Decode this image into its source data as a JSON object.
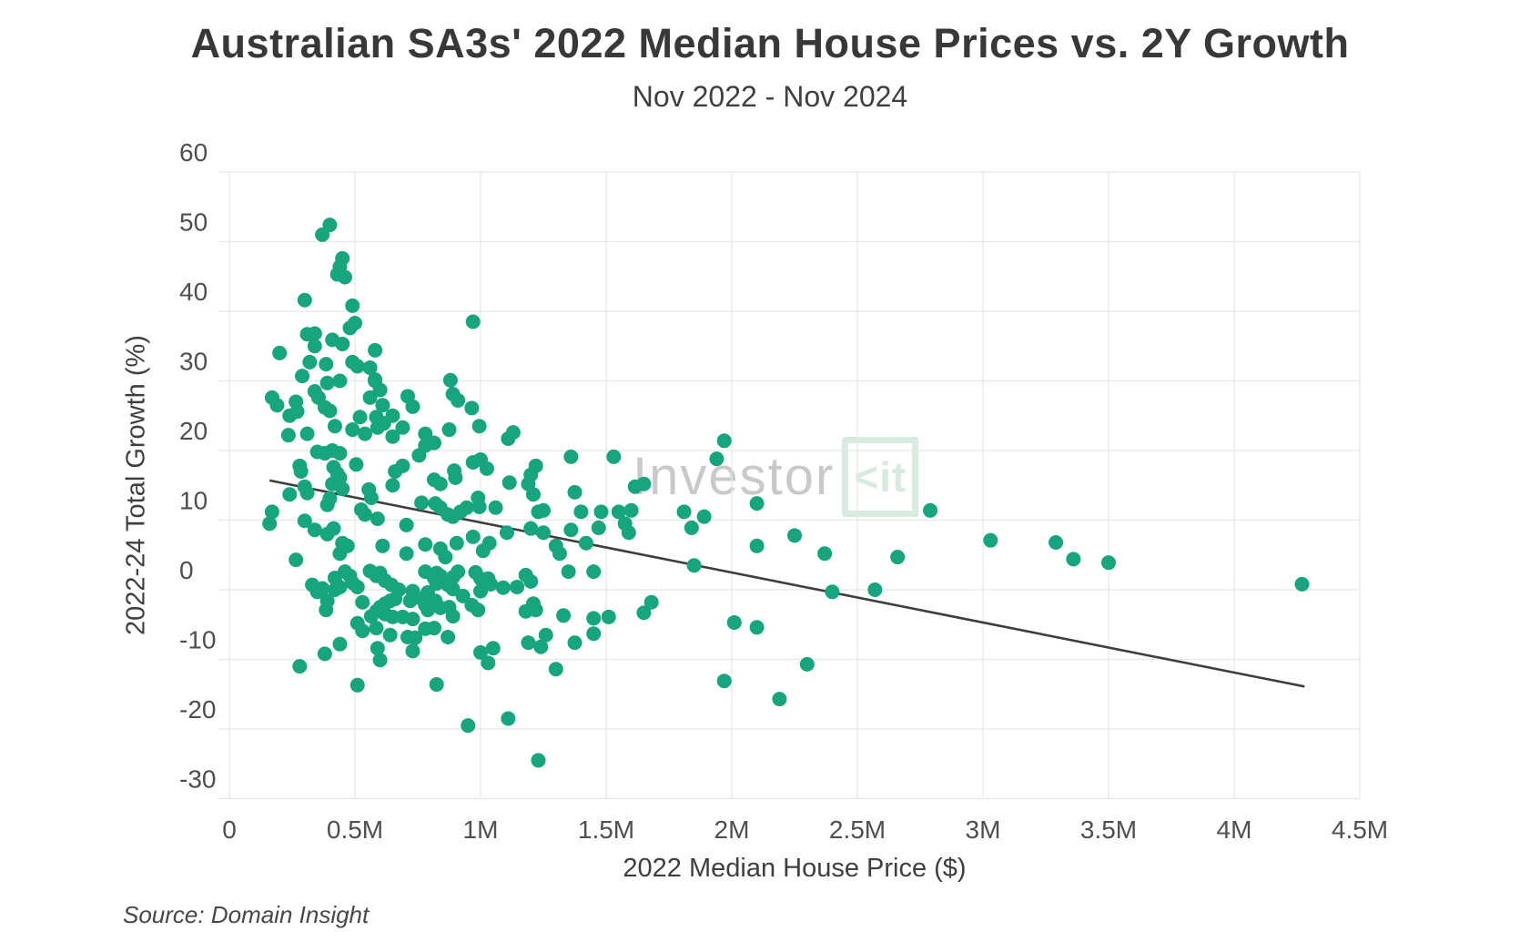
{
  "header": {
    "title": "Australian SA3s' 2022 Median House Prices vs. 2Y Growth",
    "subtitle": "Nov 2022 - Nov 2024"
  },
  "source_note": "Source: Domain Insight",
  "watermark": {
    "brand_gray": "Investor",
    "brand_k": "<",
    "brand_it": "it"
  },
  "chart_data": {
    "type": "scatter",
    "title": "Australian SA3s' 2022 Median House Prices vs. 2Y Growth",
    "subtitle": "Nov 2022 - Nov 2024",
    "xlabel": "2022 Median House Price ($)",
    "ylabel": "2022-24 Total Growth (%)",
    "xlim": [
      0,
      4.5
    ],
    "ylim": [
      -30,
      60
    ],
    "grid": true,
    "legend": "none",
    "x_unit": "millions of dollars",
    "y_unit": "percent",
    "colors": {
      "point": "#16a57d",
      "trendline": "#3e3e3e",
      "gridline": "#e7e7e7",
      "tick_text": "#4f4f4f"
    },
    "x_ticks": [
      {
        "value": 0.0,
        "label": "0"
      },
      {
        "value": 0.5,
        "label": "0.5M"
      },
      {
        "value": 1.0,
        "label": "1M"
      },
      {
        "value": 1.5,
        "label": "1.5M"
      },
      {
        "value": 2.0,
        "label": "2M"
      },
      {
        "value": 2.5,
        "label": "2.5M"
      },
      {
        "value": 3.0,
        "label": "3M"
      },
      {
        "value": 3.5,
        "label": "3.5M"
      },
      {
        "value": 4.0,
        "label": "4M"
      },
      {
        "value": 4.5,
        "label": "4.5M"
      }
    ],
    "y_ticks": [
      {
        "value": 60,
        "label": "60"
      },
      {
        "value": 50,
        "label": "50"
      },
      {
        "value": 40,
        "label": "40"
      },
      {
        "value": 30,
        "label": "30"
      },
      {
        "value": 20,
        "label": "20"
      },
      {
        "value": 10,
        "label": "10"
      },
      {
        "value": 0,
        "label": "0"
      },
      {
        "value": -10,
        "label": "-10"
      },
      {
        "value": -20,
        "label": "-20"
      },
      {
        "value": -30,
        "label": "-30"
      }
    ],
    "trendline": {
      "x1": 0.16,
      "y1": 15.7,
      "x2": 4.28,
      "y2": -13.9
    },
    "points": [
      [
        0.4,
        52.4
      ],
      [
        0.37,
        51.0
      ],
      [
        0.45,
        47.6
      ],
      [
        0.44,
        46.4
      ],
      [
        0.43,
        45.3
      ],
      [
        0.46,
        44.9
      ],
      [
        0.3,
        41.6
      ],
      [
        0.49,
        40.8
      ],
      [
        0.5,
        38.3
      ],
      [
        0.48,
        37.6
      ],
      [
        0.97,
        38.5
      ],
      [
        0.31,
        36.7
      ],
      [
        0.34,
        36.8
      ],
      [
        0.34,
        35.0
      ],
      [
        0.41,
        35.9
      ],
      [
        0.45,
        35.3
      ],
      [
        0.2,
        34.0
      ],
      [
        0.58,
        34.4
      ],
      [
        0.32,
        32.7
      ],
      [
        0.385,
        32.4
      ],
      [
        0.29,
        30.7
      ],
      [
        0.49,
        32.7
      ],
      [
        0.51,
        32.1
      ],
      [
        0.56,
        31.9
      ],
      [
        0.58,
        30.2
      ],
      [
        0.39,
        29.7
      ],
      [
        0.44,
        30.0
      ],
      [
        0.58,
        30.0
      ],
      [
        0.6,
        28.7
      ],
      [
        0.88,
        30.1
      ],
      [
        0.17,
        27.6
      ],
      [
        0.19,
        26.5
      ],
      [
        0.34,
        28.5
      ],
      [
        0.355,
        27.6
      ],
      [
        0.38,
        26.2
      ],
      [
        0.4,
        25.7
      ],
      [
        0.265,
        27.0
      ],
      [
        0.27,
        25.6
      ],
      [
        0.24,
        25.0
      ],
      [
        0.56,
        27.6
      ],
      [
        0.61,
        26.5
      ],
      [
        0.71,
        27.8
      ],
      [
        0.73,
        26.3
      ],
      [
        0.89,
        28.1
      ],
      [
        0.91,
        27.2
      ],
      [
        0.965,
        26.1
      ],
      [
        0.235,
        22.2
      ],
      [
        0.31,
        22.4
      ],
      [
        0.42,
        23.5
      ],
      [
        0.49,
        23.0
      ],
      [
        0.52,
        24.8
      ],
      [
        0.54,
        22.4
      ],
      [
        0.585,
        24.8
      ],
      [
        0.59,
        23.3
      ],
      [
        0.615,
        23.9
      ],
      [
        0.65,
        25.0
      ],
      [
        0.65,
        22.0
      ],
      [
        0.69,
        23.3
      ],
      [
        0.78,
        22.4
      ],
      [
        0.815,
        21.1
      ],
      [
        0.875,
        23.0
      ],
      [
        0.995,
        23.5
      ],
      [
        1.11,
        21.7
      ],
      [
        1.13,
        22.6
      ],
      [
        0.35,
        19.8
      ],
      [
        0.38,
        19.6
      ],
      [
        0.41,
        20.0
      ],
      [
        0.44,
        19.6
      ],
      [
        0.505,
        18.0
      ],
      [
        0.28,
        17.8
      ],
      [
        0.285,
        17.0
      ],
      [
        0.415,
        17.6
      ],
      [
        0.43,
        16.7
      ],
      [
        0.66,
        17.0
      ],
      [
        0.69,
        17.8
      ],
      [
        0.755,
        19.3
      ],
      [
        0.78,
        20.7
      ],
      [
        0.97,
        18.3
      ],
      [
        1.0,
        18.7
      ],
      [
        1.025,
        17.4
      ],
      [
        0.895,
        17.1
      ],
      [
        0.9,
        16.1
      ],
      [
        0.41,
        15.2
      ],
      [
        0.44,
        16.1
      ],
      [
        0.45,
        14.5
      ],
      [
        0.3,
        14.8
      ],
      [
        0.31,
        13.9
      ],
      [
        0.65,
        15.0
      ],
      [
        0.815,
        15.8
      ],
      [
        0.84,
        15.2
      ],
      [
        1.115,
        15.4
      ],
      [
        0.24,
        13.7
      ],
      [
        0.4,
        13.1
      ],
      [
        0.39,
        12.2
      ],
      [
        0.555,
        14.4
      ],
      [
        0.565,
        13.2
      ],
      [
        0.59,
        10.2
      ],
      [
        0.525,
        11.5
      ],
      [
        0.54,
        10.8
      ],
      [
        0.705,
        9.3
      ],
      [
        0.765,
        12.5
      ],
      [
        0.82,
        12.4
      ],
      [
        0.84,
        11.8
      ],
      [
        0.87,
        10.8
      ],
      [
        0.89,
        10.5
      ],
      [
        0.92,
        11.2
      ],
      [
        0.945,
        11.8
      ],
      [
        0.99,
        13.2
      ],
      [
        0.995,
        11.9
      ],
      [
        1.06,
        11.8
      ],
      [
        1.105,
        8.2
      ],
      [
        0.17,
        11.2
      ],
      [
        0.16,
        9.5
      ],
      [
        0.3,
        9.9
      ],
      [
        0.34,
        8.6
      ],
      [
        0.39,
        8.0
      ],
      [
        0.415,
        8.8
      ],
      [
        0.45,
        6.7
      ],
      [
        0.47,
        6.3
      ],
      [
        0.44,
        5.2
      ],
      [
        0.61,
        6.3
      ],
      [
        0.705,
        5.2
      ],
      [
        0.78,
        6.5
      ],
      [
        0.84,
        5.9
      ],
      [
        0.86,
        4.7
      ],
      [
        0.905,
        6.7
      ],
      [
        0.97,
        7.6
      ],
      [
        1.01,
        5.6
      ],
      [
        1.035,
        6.7
      ],
      [
        0.265,
        4.3
      ],
      [
        0.33,
        0.7
      ],
      [
        0.42,
        1.7
      ],
      [
        0.46,
        2.6
      ],
      [
        0.48,
        2.0
      ],
      [
        0.49,
        1.0
      ],
      [
        0.44,
        0.4
      ],
      [
        0.51,
        0.4
      ],
      [
        0.56,
        2.7
      ],
      [
        0.585,
        2.0
      ],
      [
        0.6,
        2.4
      ],
      [
        0.62,
        1.3
      ],
      [
        0.645,
        0.7
      ],
      [
        0.675,
        0.0
      ],
      [
        0.78,
        2.6
      ],
      [
        0.825,
        2.4
      ],
      [
        0.815,
        1.7
      ],
      [
        0.84,
        2.0
      ],
      [
        0.825,
        0.9
      ],
      [
        0.87,
        0.7
      ],
      [
        0.89,
        1.8
      ],
      [
        0.91,
        2.6
      ],
      [
        0.98,
        2.5
      ],
      [
        1.0,
        1.6
      ],
      [
        1.03,
        1.6
      ],
      [
        1.04,
        0.8
      ],
      [
        1.09,
        0.3
      ],
      [
        0.42,
        0.0
      ],
      [
        0.35,
        -0.3
      ],
      [
        0.37,
        0.2
      ],
      [
        0.73,
        -0.2
      ],
      [
        0.79,
        -0.4
      ],
      [
        0.89,
        0.1
      ],
      [
        1.0,
        -0.2
      ],
      [
        1.97,
        21.4
      ],
      [
        1.36,
        19.1
      ],
      [
        1.53,
        19.1
      ],
      [
        1.94,
        18.8
      ],
      [
        1.22,
        17.8
      ],
      [
        1.2,
        16.5
      ],
      [
        1.19,
        15.2
      ],
      [
        1.65,
        15.2
      ],
      [
        1.615,
        14.8
      ],
      [
        1.21,
        13.7
      ],
      [
        1.375,
        14.0
      ],
      [
        2.1,
        12.4
      ],
      [
        1.23,
        11.2
      ],
      [
        1.25,
        11.4
      ],
      [
        1.4,
        11.2
      ],
      [
        1.48,
        11.2
      ],
      [
        1.55,
        11.2
      ],
      [
        1.6,
        11.4
      ],
      [
        1.81,
        11.2
      ],
      [
        1.89,
        10.5
      ],
      [
        1.2,
        8.8
      ],
      [
        1.25,
        8.2
      ],
      [
        1.36,
        8.6
      ],
      [
        1.47,
        8.9
      ],
      [
        1.575,
        9.5
      ],
      [
        1.59,
        8.2
      ],
      [
        1.84,
        8.9
      ],
      [
        2.25,
        7.8
      ],
      [
        1.3,
        6.3
      ],
      [
        1.315,
        5.2
      ],
      [
        1.42,
        6.7
      ],
      [
        2.1,
        6.3
      ],
      [
        1.18,
        2.1
      ],
      [
        1.2,
        1.2
      ],
      [
        1.35,
        2.6
      ],
      [
        1.45,
        2.6
      ],
      [
        1.85,
        3.5
      ],
      [
        1.145,
        0.4
      ],
      [
        2.79,
        11.4
      ],
      [
        2.37,
        5.2
      ],
      [
        2.66,
        4.7
      ],
      [
        3.03,
        7.1
      ],
      [
        3.29,
        6.8
      ],
      [
        3.36,
        4.4
      ],
      [
        2.4,
        -0.3
      ],
      [
        2.57,
        0.0
      ],
      [
        3.5,
        3.9
      ],
      [
        4.27,
        0.8
      ],
      [
        0.39,
        -1.6
      ],
      [
        0.385,
        -2.9
      ],
      [
        0.53,
        -1.8
      ],
      [
        0.585,
        -3.1
      ],
      [
        0.62,
        -2.0
      ],
      [
        0.64,
        -1.6
      ],
      [
        0.66,
        -1.3
      ],
      [
        0.72,
        -1.6
      ],
      [
        0.765,
        -1.3
      ],
      [
        0.78,
        -2.2
      ],
      [
        0.79,
        -2.9
      ],
      [
        0.82,
        -1.6
      ],
      [
        0.6,
        -2.5
      ],
      [
        0.565,
        -3.8
      ],
      [
        0.62,
        -3.5
      ],
      [
        0.65,
        -3.9
      ],
      [
        0.69,
        -3.9
      ],
      [
        0.73,
        -4.2
      ],
      [
        0.84,
        -2.6
      ],
      [
        0.875,
        -2.5
      ],
      [
        0.89,
        -3.8
      ],
      [
        0.93,
        -0.9
      ],
      [
        0.965,
        -2.2
      ],
      [
        0.99,
        -2.9
      ],
      [
        0.51,
        -4.8
      ],
      [
        0.53,
        -5.9
      ],
      [
        0.585,
        -5.5
      ],
      [
        0.64,
        -6.5
      ],
      [
        0.71,
        -6.8
      ],
      [
        0.74,
        -6.9
      ],
      [
        0.78,
        -5.6
      ],
      [
        0.815,
        -5.5
      ],
      [
        0.87,
        -6.8
      ],
      [
        0.44,
        -7.8
      ],
      [
        0.38,
        -9.2
      ],
      [
        0.59,
        -8.4
      ],
      [
        0.6,
        -10.1
      ],
      [
        0.73,
        -8.8
      ],
      [
        1.0,
        -9.0
      ],
      [
        1.05,
        -8.4
      ],
      [
        1.03,
        -10.5
      ],
      [
        0.28,
        -11.0
      ],
      [
        0.51,
        -13.7
      ],
      [
        0.825,
        -13.6
      ],
      [
        1.11,
        -18.5
      ],
      [
        0.95,
        -19.5
      ],
      [
        1.18,
        -3.1
      ],
      [
        1.21,
        -2.0
      ],
      [
        1.22,
        -2.9
      ],
      [
        1.33,
        -3.7
      ],
      [
        1.45,
        -4.1
      ],
      [
        1.51,
        -3.9
      ],
      [
        1.45,
        -6.3
      ],
      [
        1.65,
        -3.3
      ],
      [
        1.68,
        -1.8
      ],
      [
        1.19,
        -7.6
      ],
      [
        1.24,
        -8.2
      ],
      [
        1.26,
        -6.5
      ],
      [
        1.375,
        -7.6
      ],
      [
        2.01,
        -4.7
      ],
      [
        2.1,
        -5.4
      ],
      [
        1.3,
        -11.4
      ],
      [
        1.97,
        -13.1
      ],
      [
        2.19,
        -15.7
      ],
      [
        1.23,
        -24.5
      ],
      [
        2.3,
        -10.7
      ]
    ]
  }
}
